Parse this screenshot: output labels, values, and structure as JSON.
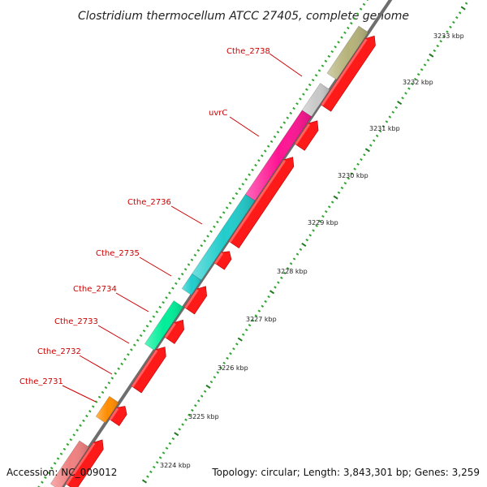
{
  "title": "Clostridium thermocellum ATCC 27405, complete genome",
  "accession_text": "Accession: NC_009012",
  "summary_text": "Topology: circular; Length: 3,843,301 bp; Genes: 3,259",
  "colors": {
    "label": "#cc0000",
    "forward_feature": "#ff1a1a",
    "backbone": "#8c8c8c",
    "tick_major": "#1f7a1f",
    "tick_minor": "#2fa52f"
  },
  "ticks": [
    {
      "label": "3233 kbp"
    },
    {
      "label": "3232 kbp"
    },
    {
      "label": "3231 kbp"
    },
    {
      "label": "3230 kbp"
    },
    {
      "label": "3229 kbp"
    },
    {
      "label": "3228 kbp"
    },
    {
      "label": "3227 kbp"
    },
    {
      "label": "3226 kbp"
    },
    {
      "label": "3225 kbp"
    },
    {
      "label": "3224 kbp"
    }
  ],
  "gene_labels": [
    {
      "name": "Cthe_2738"
    },
    {
      "name": "uvrC"
    },
    {
      "name": "Cthe_2736"
    },
    {
      "name": "Cthe_2735"
    },
    {
      "name": "Cthe_2734"
    },
    {
      "name": "Cthe_2733"
    },
    {
      "name": "Cthe_2732"
    },
    {
      "name": "Cthe_2731"
    }
  ],
  "upper_track_colors": [
    "#f08080",
    "#ff8c00",
    "#00ee99",
    "#22cccc",
    "#ff1493",
    "#c8c8c8",
    "#b5b27a"
  ]
}
